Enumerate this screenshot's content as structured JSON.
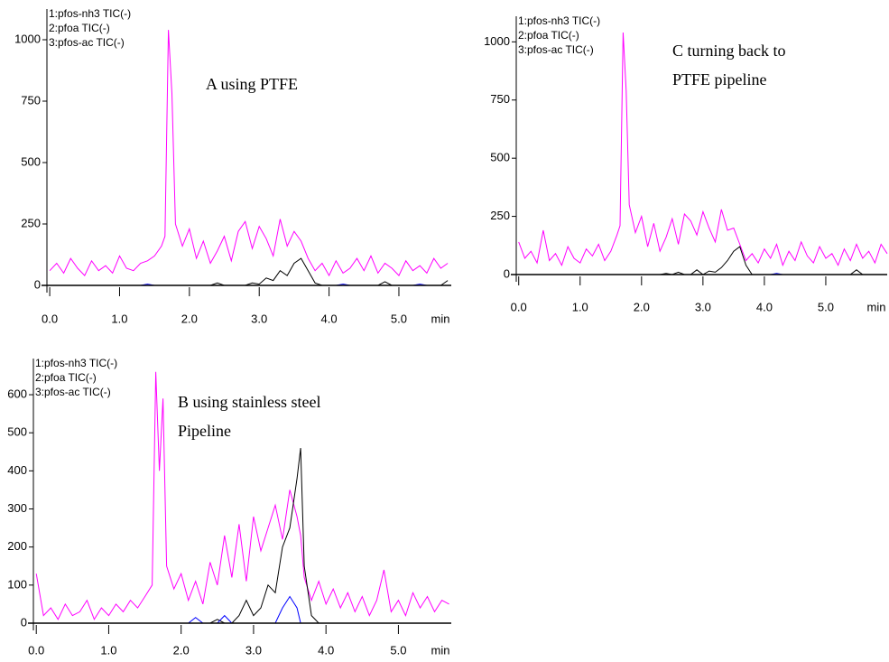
{
  "chart_data": [
    {
      "type": "line",
      "annotation": [
        "A using PTFE"
      ],
      "x_label": "min",
      "legend": "upper left",
      "x": [
        0,
        0.1,
        0.2,
        0.3,
        0.4,
        0.5,
        0.6,
        0.7,
        0.8,
        0.9,
        1,
        1.1,
        1.2,
        1.3,
        1.4,
        1.5,
        1.6,
        1.65,
        1.7,
        1.75,
        1.8,
        1.9,
        2,
        2.1,
        2.2,
        2.3,
        2.4,
        2.5,
        2.6,
        2.7,
        2.8,
        2.9,
        3,
        3.1,
        3.2,
        3.3,
        3.4,
        3.5,
        3.6,
        3.7,
        3.8,
        3.9,
        4,
        4.1,
        4.2,
        4.3,
        4.4,
        4.5,
        4.6,
        4.7,
        4.8,
        4.9,
        5,
        5.1,
        5.2,
        5.3,
        5.4,
        5.5,
        5.6,
        5.7
      ],
      "series": [
        {
          "name": "1:pfos-nh3 TIC(-)",
          "color": "#000000",
          "values": [
            0,
            0,
            0,
            0,
            0,
            0,
            0,
            0,
            0,
            0,
            0,
            0,
            0,
            0,
            0,
            0,
            0,
            0,
            0,
            0,
            0,
            0,
            0,
            0,
            0,
            0,
            10,
            0,
            0,
            0,
            0,
            10,
            5,
            30,
            20,
            60,
            40,
            90,
            110,
            60,
            10,
            0,
            0,
            0,
            0,
            0,
            0,
            0,
            0,
            0,
            15,
            0,
            0,
            0,
            0,
            0,
            0,
            0,
            0,
            20
          ]
        },
        {
          "name": "2:pfoa TIC(-)",
          "color": "#ff00ff",
          "values": [
            60,
            90,
            50,
            110,
            70,
            40,
            100,
            60,
            80,
            50,
            120,
            70,
            60,
            90,
            100,
            120,
            160,
            200,
            1040,
            780,
            250,
            160,
            230,
            110,
            180,
            90,
            140,
            200,
            100,
            220,
            260,
            150,
            240,
            190,
            120,
            270,
            160,
            220,
            180,
            110,
            60,
            90,
            40,
            100,
            50,
            70,
            110,
            60,
            120,
            50,
            90,
            70,
            40,
            100,
            60,
            80,
            50,
            110,
            70,
            90
          ]
        },
        {
          "name": "3:pfos-ac TIC(-)",
          "color": "#0000ff",
          "values": [
            0,
            0,
            0,
            0,
            0,
            0,
            0,
            0,
            0,
            0,
            0,
            0,
            0,
            0,
            5,
            0,
            0,
            0,
            0,
            0,
            0,
            0,
            0,
            0,
            0,
            0,
            0,
            0,
            0,
            0,
            0,
            0,
            0,
            0,
            0,
            0,
            0,
            0,
            0,
            0,
            0,
            0,
            0,
            0,
            5,
            0,
            0,
            0,
            0,
            0,
            0,
            0,
            0,
            0,
            0,
            5,
            0,
            0,
            0,
            0
          ]
        }
      ],
      "xlim": [
        -0.04,
        5.75
      ],
      "ylim": [
        0,
        1125
      ],
      "xticks": [
        {
          "value": 0,
          "label": "0.0"
        },
        {
          "value": 1,
          "label": "1.0"
        },
        {
          "value": 2,
          "label": "2.0"
        },
        {
          "value": 3,
          "label": "3.0"
        },
        {
          "value": 4,
          "label": "4.0"
        },
        {
          "value": 5,
          "label": "5.0"
        }
      ],
      "yticks": [
        0,
        250,
        500,
        750,
        1000
      ]
    },
    {
      "type": "line",
      "annotation": [
        "C turning back to",
        "PTFE pipeline"
      ],
      "x_label": "min",
      "legend": "upper left",
      "x": [
        0,
        0.1,
        0.2,
        0.3,
        0.4,
        0.5,
        0.6,
        0.7,
        0.8,
        0.9,
        1,
        1.1,
        1.2,
        1.3,
        1.4,
        1.5,
        1.6,
        1.65,
        1.7,
        1.75,
        1.8,
        1.9,
        2,
        2.1,
        2.2,
        2.3,
        2.4,
        2.5,
        2.6,
        2.7,
        2.8,
        2.9,
        3,
        3.1,
        3.2,
        3.3,
        3.4,
        3.5,
        3.6,
        3.7,
        3.8,
        3.9,
        4,
        4.1,
        4.2,
        4.3,
        4.4,
        4.5,
        4.6,
        4.7,
        4.8,
        4.9,
        5,
        5.1,
        5.2,
        5.3,
        5.4,
        5.5,
        5.6,
        5.7,
        5.8,
        5.9,
        6
      ],
      "series": [
        {
          "name": "1:pfos-nh3 TIC(-)",
          "color": "#000000",
          "values": [
            0,
            0,
            0,
            0,
            0,
            0,
            0,
            0,
            0,
            0,
            0,
            0,
            0,
            0,
            0,
            0,
            0,
            0,
            0,
            0,
            0,
            0,
            0,
            0,
            0,
            0,
            5,
            0,
            10,
            0,
            0,
            20,
            0,
            15,
            10,
            30,
            60,
            100,
            120,
            40,
            0,
            0,
            0,
            0,
            0,
            0,
            0,
            0,
            0,
            0,
            0,
            0,
            0,
            0,
            0,
            0,
            0,
            20,
            0,
            0,
            0,
            0,
            0
          ]
        },
        {
          "name": "2:pfoa TIC(-)",
          "color": "#ff00ff",
          "values": [
            140,
            70,
            100,
            50,
            190,
            60,
            90,
            40,
            120,
            70,
            50,
            110,
            80,
            130,
            60,
            100,
            170,
            210,
            1040,
            790,
            300,
            180,
            250,
            120,
            220,
            100,
            160,
            240,
            130,
            260,
            230,
            170,
            270,
            200,
            140,
            280,
            190,
            200,
            130,
            60,
            90,
            50,
            110,
            70,
            130,
            40,
            100,
            60,
            140,
            80,
            50,
            120,
            70,
            90,
            40,
            110,
            60,
            130,
            70,
            100,
            50,
            130,
            90
          ]
        },
        {
          "name": "3:pfos-ac TIC(-)",
          "color": "#0000ff",
          "values": [
            0,
            0,
            0,
            0,
            0,
            0,
            0,
            0,
            0,
            0,
            0,
            0,
            0,
            0,
            0,
            0,
            0,
            0,
            0,
            0,
            0,
            0,
            0,
            0,
            0,
            0,
            0,
            0,
            0,
            0,
            0,
            0,
            0,
            0,
            0,
            0,
            0,
            0,
            0,
            0,
            0,
            0,
            0,
            0,
            5,
            0,
            0,
            0,
            0,
            0,
            0,
            0,
            0,
            0,
            0,
            0,
            0,
            0,
            0,
            0,
            0,
            0,
            0
          ]
        }
      ],
      "xlim": [
        -0.04,
        6
      ],
      "ylim": [
        0,
        1110
      ],
      "xticks": [
        {
          "value": 0,
          "label": "0.0"
        },
        {
          "value": 1,
          "label": "1.0"
        },
        {
          "value": 2,
          "label": "2.0"
        },
        {
          "value": 3,
          "label": "3.0"
        },
        {
          "value": 4,
          "label": "4.0"
        },
        {
          "value": 5,
          "label": "5.0"
        }
      ],
      "yticks": [
        0,
        250,
        500,
        750,
        1000
      ]
    },
    {
      "type": "line",
      "annotation": [
        "B using stainless steel",
        "Pipeline"
      ],
      "x_label": "min",
      "legend": "upper left",
      "x": [
        0,
        0.1,
        0.2,
        0.3,
        0.4,
        0.5,
        0.6,
        0.7,
        0.8,
        0.9,
        1,
        1.1,
        1.2,
        1.3,
        1.4,
        1.5,
        1.6,
        1.65,
        1.7,
        1.75,
        1.8,
        1.9,
        2,
        2.1,
        2.2,
        2.3,
        2.4,
        2.5,
        2.6,
        2.7,
        2.8,
        2.9,
        3,
        3.1,
        3.2,
        3.3,
        3.4,
        3.5,
        3.6,
        3.65,
        3.7,
        3.8,
        3.9,
        4,
        4.1,
        4.2,
        4.3,
        4.4,
        4.5,
        4.6,
        4.7,
        4.8,
        4.9,
        5,
        5.1,
        5.2,
        5.3,
        5.4,
        5.5,
        5.6,
        5.7
      ],
      "series": [
        {
          "name": "1:pfos-nh3 TIC(-)",
          "color": "#000000",
          "values": [
            0,
            0,
            0,
            0,
            0,
            0,
            0,
            0,
            0,
            0,
            0,
            0,
            0,
            0,
            0,
            0,
            0,
            0,
            0,
            0,
            0,
            0,
            0,
            0,
            0,
            0,
            0,
            10,
            0,
            0,
            20,
            60,
            20,
            40,
            100,
            80,
            200,
            250,
            380,
            460,
            150,
            20,
            0,
            0,
            0,
            0,
            0,
            0,
            0,
            0,
            0,
            0,
            0,
            0,
            0,
            0,
            0,
            0,
            0,
            0,
            0
          ]
        },
        {
          "name": "2:pfoa TIC(-)",
          "color": "#ff00ff",
          "values": [
            130,
            20,
            40,
            10,
            50,
            20,
            30,
            60,
            10,
            40,
            20,
            50,
            30,
            60,
            40,
            70,
            100,
            660,
            400,
            590,
            150,
            90,
            130,
            60,
            110,
            50,
            160,
            100,
            230,
            120,
            260,
            110,
            280,
            190,
            250,
            310,
            220,
            350,
            280,
            230,
            120,
            60,
            110,
            50,
            90,
            40,
            80,
            30,
            70,
            20,
            60,
            140,
            30,
            60,
            20,
            80,
            40,
            70,
            30,
            60,
            50
          ]
        },
        {
          "name": "3:pfos-ac TIC(-)",
          "color": "#0000ff",
          "values": [
            0,
            0,
            0,
            0,
            0,
            0,
            0,
            0,
            0,
            0,
            0,
            0,
            0,
            0,
            0,
            0,
            0,
            0,
            0,
            0,
            0,
            0,
            0,
            0,
            15,
            0,
            0,
            0,
            20,
            0,
            0,
            0,
            0,
            0,
            0,
            0,
            40,
            70,
            40,
            0,
            0,
            0,
            0,
            0,
            0,
            0,
            0,
            0,
            0,
            0,
            0,
            0,
            0,
            0,
            0,
            0,
            0,
            0,
            0,
            0,
            0
          ]
        }
      ],
      "xlim": [
        -0.04,
        5.73
      ],
      "ylim": [
        0,
        695
      ],
      "xticks": [
        {
          "value": 0,
          "label": "0.0"
        },
        {
          "value": 1,
          "label": "1.0"
        },
        {
          "value": 2,
          "label": "2.0"
        },
        {
          "value": 3,
          "label": "3.0"
        },
        {
          "value": 4,
          "label": "4.0"
        },
        {
          "value": 5,
          "label": "5.0"
        }
      ],
      "yticks": [
        0,
        100,
        200,
        300,
        400,
        500,
        600
      ]
    }
  ]
}
